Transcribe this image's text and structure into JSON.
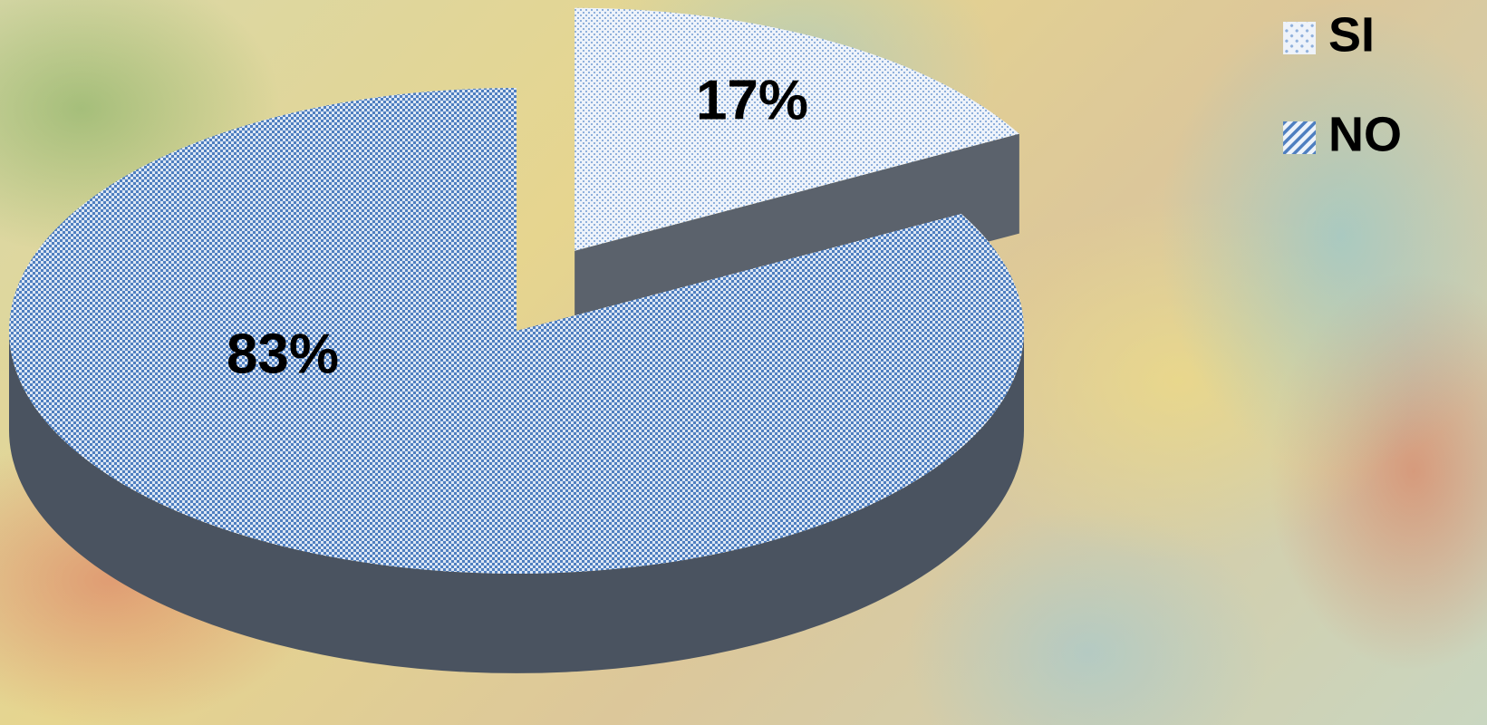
{
  "chart_data": {
    "type": "pie3d",
    "categories": [
      "SI",
      "NO"
    ],
    "values": [
      17,
      83
    ],
    "value_labels": [
      "17%",
      "83%"
    ],
    "colors": [
      "#8fb0dc",
      "#4f7fc0"
    ],
    "legend": "top-right"
  }
}
